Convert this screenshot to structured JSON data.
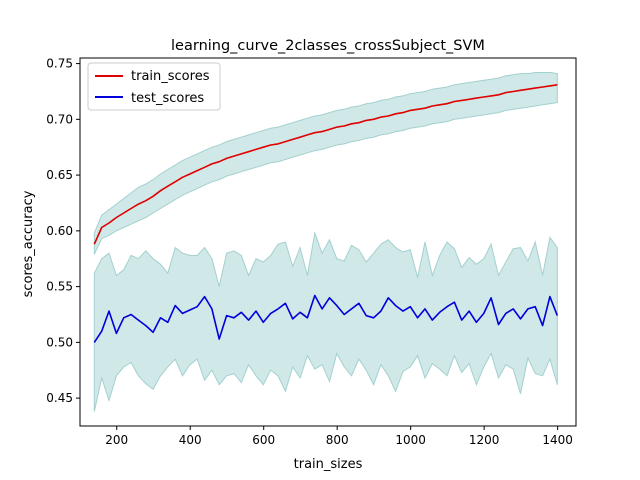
{
  "chart_data": {
    "type": "line",
    "title": "learning_curve_2classes_crossSubject_SVM",
    "xlabel": "train_sizes",
    "ylabel": "scores_accuracy",
    "xlim": [
      100,
      1450
    ],
    "ylim": [
      0.425,
      0.755
    ],
    "xticks": [
      200,
      400,
      600,
      800,
      1000,
      1200,
      1400
    ],
    "yticks": [
      0.45,
      0.5,
      0.55,
      0.6,
      0.65,
      0.7,
      0.75
    ],
    "grid": false,
    "legend_position": "top-left",
    "band_color": "#a2d1cf",
    "series": [
      {
        "name": "train_scores",
        "color": "#e00000",
        "x": [
          139,
          159,
          179,
          199,
          219,
          239,
          259,
          279,
          299,
          319,
          339,
          359,
          379,
          399,
          419,
          439,
          459,
          479,
          499,
          519,
          539,
          559,
          579,
          599,
          619,
          639,
          659,
          679,
          699,
          719,
          739,
          759,
          779,
          799,
          819,
          839,
          859,
          879,
          899,
          919,
          939,
          959,
          979,
          999,
          1019,
          1039,
          1059,
          1079,
          1099,
          1119,
          1139,
          1159,
          1179,
          1199,
          1219,
          1239,
          1259,
          1279,
          1299,
          1319,
          1339,
          1359,
          1379,
          1399
        ],
        "values": [
          0.588,
          0.603,
          0.607,
          0.612,
          0.616,
          0.62,
          0.624,
          0.627,
          0.631,
          0.636,
          0.64,
          0.644,
          0.648,
          0.651,
          0.654,
          0.657,
          0.66,
          0.662,
          0.665,
          0.667,
          0.669,
          0.671,
          0.673,
          0.675,
          0.677,
          0.678,
          0.68,
          0.682,
          0.684,
          0.686,
          0.688,
          0.689,
          0.691,
          0.693,
          0.694,
          0.696,
          0.697,
          0.699,
          0.7,
          0.702,
          0.703,
          0.705,
          0.706,
          0.708,
          0.709,
          0.71,
          0.712,
          0.713,
          0.714,
          0.716,
          0.717,
          0.718,
          0.719,
          0.72,
          0.721,
          0.722,
          0.724,
          0.725,
          0.726,
          0.727,
          0.728,
          0.729,
          0.73,
          0.731
        ],
        "band_lower": [
          0.579,
          0.593,
          0.596,
          0.6,
          0.603,
          0.606,
          0.609,
          0.612,
          0.616,
          0.62,
          0.624,
          0.628,
          0.632,
          0.635,
          0.638,
          0.641,
          0.644,
          0.646,
          0.649,
          0.651,
          0.653,
          0.655,
          0.657,
          0.659,
          0.661,
          0.662,
          0.664,
          0.666,
          0.668,
          0.67,
          0.672,
          0.673,
          0.675,
          0.677,
          0.678,
          0.68,
          0.681,
          0.683,
          0.684,
          0.686,
          0.687,
          0.689,
          0.69,
          0.692,
          0.693,
          0.694,
          0.696,
          0.697,
          0.698,
          0.7,
          0.701,
          0.702,
          0.703,
          0.704,
          0.705,
          0.706,
          0.708,
          0.709,
          0.71,
          0.711,
          0.712,
          0.713,
          0.714,
          0.715
        ],
        "band_upper": [
          0.598,
          0.614,
          0.619,
          0.624,
          0.629,
          0.634,
          0.639,
          0.642,
          0.646,
          0.651,
          0.655,
          0.659,
          0.663,
          0.666,
          0.669,
          0.672,
          0.675,
          0.677,
          0.68,
          0.682,
          0.684,
          0.686,
          0.688,
          0.69,
          0.692,
          0.693,
          0.695,
          0.697,
          0.699,
          0.701,
          0.703,
          0.704,
          0.706,
          0.708,
          0.709,
          0.711,
          0.712,
          0.714,
          0.715,
          0.717,
          0.718,
          0.72,
          0.721,
          0.723,
          0.724,
          0.725,
          0.727,
          0.728,
          0.729,
          0.731,
          0.732,
          0.733,
          0.734,
          0.735,
          0.736,
          0.737,
          0.739,
          0.74,
          0.741,
          0.741,
          0.742,
          0.742,
          0.742,
          0.741
        ]
      },
      {
        "name": "test_scores",
        "color": "#0000dd",
        "x": [
          139,
          159,
          179,
          199,
          219,
          239,
          259,
          279,
          299,
          319,
          339,
          359,
          379,
          399,
          419,
          439,
          459,
          479,
          499,
          519,
          539,
          559,
          579,
          599,
          619,
          639,
          659,
          679,
          699,
          719,
          739,
          759,
          779,
          799,
          819,
          839,
          859,
          879,
          899,
          919,
          939,
          959,
          979,
          999,
          1019,
          1039,
          1059,
          1079,
          1099,
          1119,
          1139,
          1159,
          1179,
          1199,
          1219,
          1239,
          1259,
          1279,
          1299,
          1319,
          1339,
          1359,
          1379,
          1399
        ],
        "values": [
          0.5,
          0.51,
          0.528,
          0.508,
          0.522,
          0.525,
          0.52,
          0.515,
          0.509,
          0.522,
          0.518,
          0.533,
          0.526,
          0.529,
          0.532,
          0.541,
          0.53,
          0.503,
          0.524,
          0.522,
          0.527,
          0.52,
          0.528,
          0.518,
          0.526,
          0.53,
          0.535,
          0.521,
          0.527,
          0.522,
          0.542,
          0.53,
          0.54,
          0.533,
          0.525,
          0.53,
          0.535,
          0.524,
          0.522,
          0.528,
          0.54,
          0.533,
          0.528,
          0.532,
          0.522,
          0.53,
          0.52,
          0.527,
          0.532,
          0.536,
          0.52,
          0.528,
          0.518,
          0.526,
          0.54,
          0.516,
          0.526,
          0.53,
          0.521,
          0.53,
          0.532,
          0.515,
          0.541,
          0.524
        ],
        "band_lower": [
          0.438,
          0.468,
          0.448,
          0.47,
          0.478,
          0.482,
          0.47,
          0.463,
          0.458,
          0.47,
          0.478,
          0.485,
          0.47,
          0.48,
          0.485,
          0.466,
          0.475,
          0.462,
          0.47,
          0.472,
          0.464,
          0.48,
          0.47,
          0.462,
          0.475,
          0.47,
          0.456,
          0.478,
          0.468,
          0.488,
          0.476,
          0.48,
          0.465,
          0.49,
          0.478,
          0.47,
          0.485,
          0.475,
          0.462,
          0.48,
          0.47,
          0.456,
          0.474,
          0.478,
          0.488,
          0.468,
          0.481,
          0.476,
          0.47,
          0.488,
          0.473,
          0.481,
          0.462,
          0.478,
          0.49,
          0.468,
          0.48,
          0.476,
          0.454,
          0.486,
          0.472,
          0.47,
          0.485,
          0.462
        ],
        "band_upper": [
          0.562,
          0.575,
          0.58,
          0.56,
          0.565,
          0.578,
          0.575,
          0.582,
          0.575,
          0.57,
          0.562,
          0.585,
          0.58,
          0.578,
          0.578,
          0.585,
          0.575,
          0.55,
          0.58,
          0.582,
          0.578,
          0.56,
          0.575,
          0.572,
          0.578,
          0.588,
          0.59,
          0.568,
          0.585,
          0.56,
          0.598,
          0.58,
          0.592,
          0.575,
          0.573,
          0.587,
          0.583,
          0.572,
          0.58,
          0.588,
          0.592,
          0.585,
          0.581,
          0.583,
          0.558,
          0.59,
          0.56,
          0.578,
          0.59,
          0.584,
          0.567,
          0.576,
          0.57,
          0.575,
          0.588,
          0.56,
          0.572,
          0.584,
          0.585,
          0.573,
          0.59,
          0.56,
          0.594,
          0.585
        ]
      }
    ]
  }
}
